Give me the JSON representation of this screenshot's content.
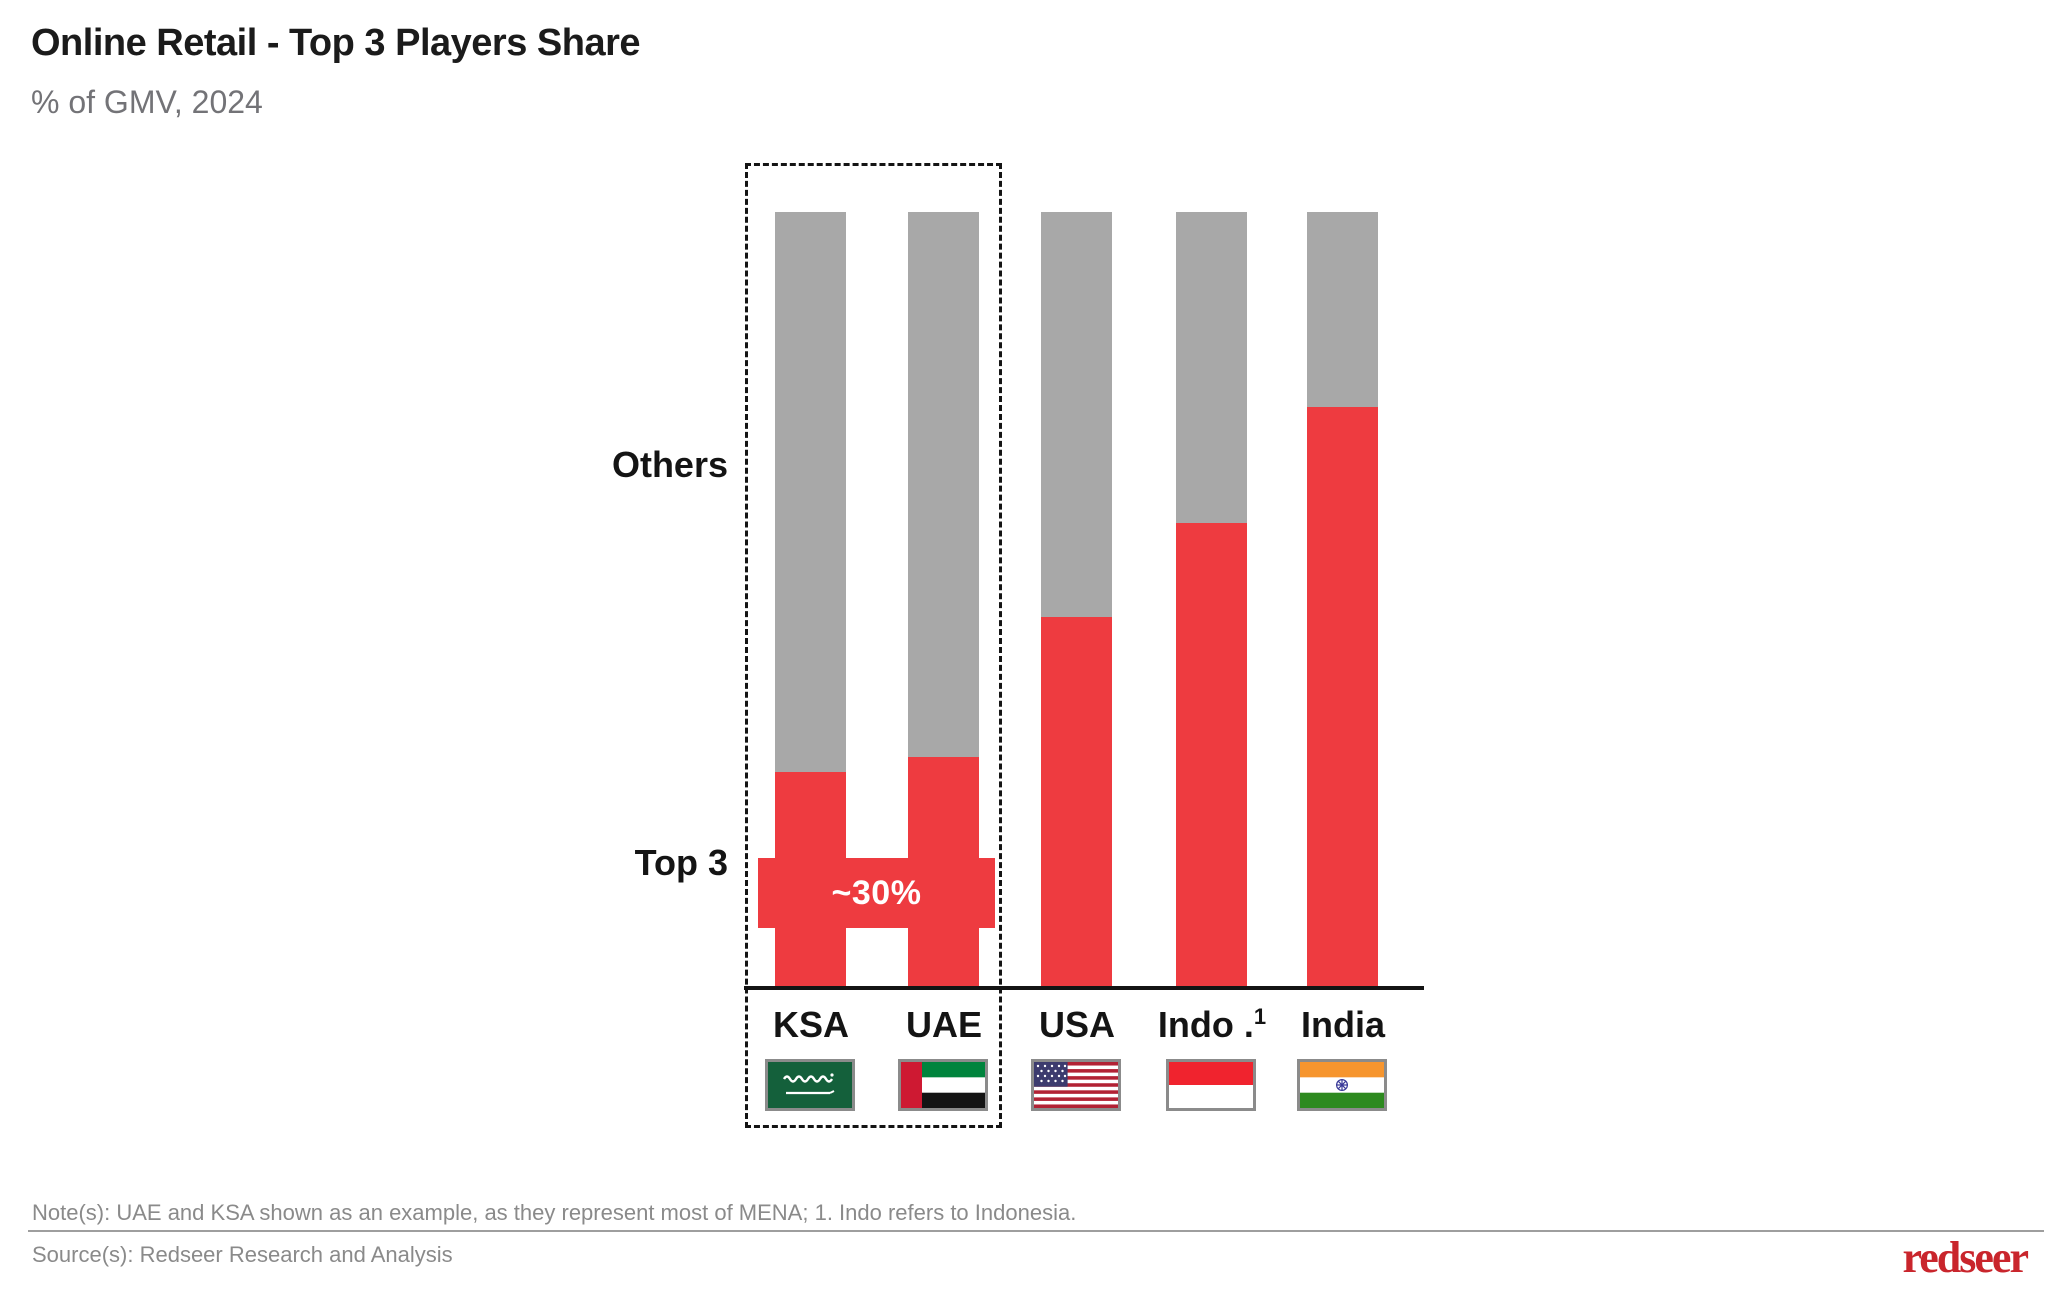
{
  "header": {
    "title": "Online Retail - Top 3 Players Share",
    "subtitle": "% of GMV, 2024"
  },
  "chart_data": {
    "type": "bar",
    "stacked": true,
    "units": "% of GMV",
    "year": "2024",
    "categories": [
      "KSA",
      "UAE",
      "USA",
      "Indo",
      "India"
    ],
    "category_labels": [
      {
        "text": "KSA",
        "sup": ""
      },
      {
        "text": "UAE",
        "sup": ""
      },
      {
        "text": "USA",
        "sup": ""
      },
      {
        "text": "Indo .",
        "sup": "1"
      },
      {
        "text": "India",
        "sup": ""
      }
    ],
    "series": [
      {
        "name": "Top 3",
        "color": "#EE3B40",
        "values": [
          28,
          30,
          48,
          60,
          75
        ]
      },
      {
        "name": "Others",
        "color": "#A8A8A8",
        "values": [
          72,
          70,
          52,
          40,
          25
        ]
      }
    ],
    "ylim": [
      0,
      100
    ],
    "axis_ticks_visible": false,
    "grid": false,
    "legend_position": "left-row-labels",
    "annotations": [
      {
        "text": "~30%",
        "targets": [
          "KSA",
          "UAE"
        ],
        "style": "red-band-across-bars"
      }
    ],
    "highlight": {
      "type": "dashed-box",
      "targets": [
        "KSA",
        "UAE"
      ]
    }
  },
  "row_labels": {
    "others": "Others",
    "top3": "Top 3"
  },
  "callout": {
    "label": "~30%"
  },
  "flags": [
    "saudi-arabia-flag",
    "uae-flag",
    "usa-flag",
    "indonesia-flag",
    "india-flag"
  ],
  "footer": {
    "note": "Note(s): UAE and KSA shown as an example, as they represent most of MENA; 1. Indo refers to Indonesia.",
    "source": "Source(s): Redseer Research and Analysis",
    "logo": "redseer"
  },
  "colors": {
    "top3": "#EE3B40",
    "others": "#A8A8A8",
    "brand": "#C9252C",
    "axis": "#141414"
  }
}
